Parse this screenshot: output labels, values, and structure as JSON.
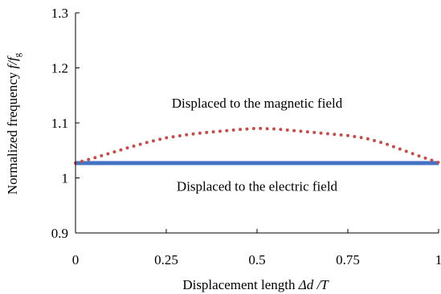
{
  "chart_data": {
    "type": "line",
    "xlabel_text": "Displacement length ",
    "xlabel_math": "Δd /T",
    "ylabel_text": "Normalized frequency ",
    "ylabel_math": "f/f",
    "ylabel_sub": "g",
    "xlim": [
      0,
      1
    ],
    "ylim": [
      0.9,
      1.3
    ],
    "x_ticks": [
      0,
      0.25,
      0.5,
      0.75,
      1
    ],
    "x_tick_labels": [
      "0",
      "0.25",
      "0.5",
      "0.75",
      "1"
    ],
    "y_ticks": [
      0.9,
      1.0,
      1.1,
      1.2,
      1.3
    ],
    "y_tick_labels": [
      "0.9",
      "1",
      "1.1",
      "1.2",
      "1.3"
    ],
    "grid": false,
    "annotations": [
      {
        "text": "Displaced to the magnetic field",
        "x": 0.5,
        "y": 1.128
      },
      {
        "text": "Displaced to the electric field",
        "x": 0.5,
        "y": 0.977
      }
    ],
    "series": [
      {
        "style": "solid",
        "color": "#4472c4",
        "x": [
          0,
          0.1,
          0.2,
          0.3,
          0.4,
          0.5,
          0.6,
          0.7,
          0.8,
          0.9,
          1.0
        ],
        "y": [
          1.027,
          1.027,
          1.027,
          1.027,
          1.027,
          1.027,
          1.027,
          1.027,
          1.027,
          1.027,
          1.027
        ]
      },
      {
        "style": "dotted",
        "color": "#c0504d",
        "x": [
          0,
          0.05,
          0.1,
          0.15,
          0.2,
          0.25,
          0.3,
          0.35,
          0.4,
          0.45,
          0.5,
          0.55,
          0.6,
          0.65,
          0.7,
          0.75,
          0.8,
          0.85,
          0.9,
          0.95,
          1.0
        ],
        "y": [
          1.027,
          1.036,
          1.046,
          1.056,
          1.065,
          1.073,
          1.078,
          1.082,
          1.085,
          1.088,
          1.09,
          1.089,
          1.086,
          1.083,
          1.08,
          1.077,
          1.072,
          1.063,
          1.051,
          1.039,
          1.028
        ]
      }
    ]
  }
}
